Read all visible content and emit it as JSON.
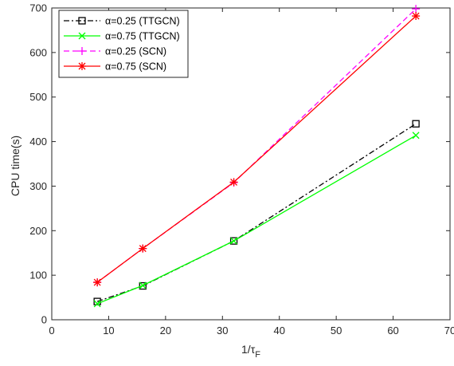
{
  "chart_data": {
    "type": "line",
    "title": "",
    "xlabel": "1/τ",
    "xlabel_sub": "F",
    "ylabel": "CPU time(s)",
    "xlim": [
      0,
      70
    ],
    "ylim": [
      0,
      700
    ],
    "xticks": [
      0,
      10,
      20,
      30,
      40,
      50,
      60,
      70
    ],
    "yticks": [
      0,
      100,
      200,
      300,
      400,
      500,
      600,
      700
    ],
    "grid": false,
    "legend_position": "top-left",
    "x": [
      8,
      16,
      32,
      64
    ],
    "series": [
      {
        "name": "α=0.25 (TTGCN)",
        "values": [
          41,
          76,
          177,
          440
        ],
        "color": "#000000",
        "dash": "dashdot",
        "marker": "square"
      },
      {
        "name": "α=0.75 (TTGCN)",
        "values": [
          36,
          77,
          177,
          414
        ],
        "color": "#00ff00",
        "dash": "solid",
        "marker": "x"
      },
      {
        "name": "α=0.25 (SCN)",
        "values": [
          84,
          160,
          308,
          698
        ],
        "color": "#ff00ff",
        "dash": "dashed",
        "marker": "plus"
      },
      {
        "name": "α=0.75 (SCN)",
        "values": [
          84,
          160,
          309,
          682
        ],
        "color": "#ff0000",
        "dash": "solid",
        "marker": "star"
      }
    ]
  }
}
